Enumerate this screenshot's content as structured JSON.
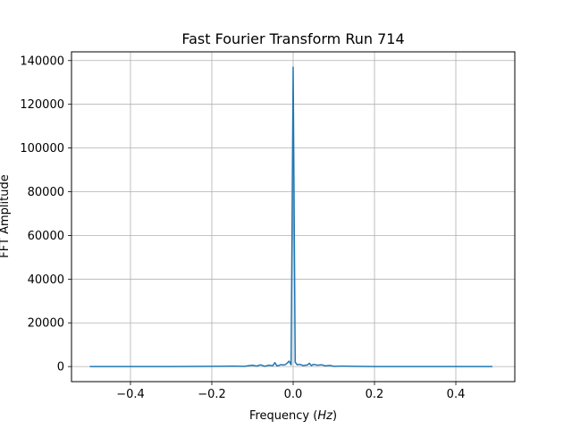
{
  "chart_data": {
    "type": "line",
    "title": "Fast Fourier Transform Run 714",
    "xlabel_prefix": "Frequency (",
    "xlabel_unit": "Hz",
    "xlabel_suffix": ")",
    "ylabel": "FFT Amplitude",
    "xlim": [
      -0.545,
      0.545
    ],
    "ylim": [
      -6900,
      144000
    ],
    "grid": true,
    "x_ticks": [
      -0.4,
      -0.2,
      0.0,
      0.2,
      0.4
    ],
    "x_tick_labels": [
      "−0.4",
      "−0.2",
      "0.0",
      "0.2",
      "0.4"
    ],
    "y_ticks": [
      0,
      20000,
      40000,
      60000,
      80000,
      100000,
      120000,
      140000
    ],
    "y_tick_labels": [
      "0",
      "20000",
      "40000",
      "60000",
      "80000",
      "100000",
      "120000",
      "140000"
    ],
    "series": [
      {
        "color": "#1f77b4",
        "x": [
          -0.5,
          -0.4,
          -0.3,
          -0.2,
          -0.15,
          -0.12,
          -0.1,
          -0.09,
          -0.08,
          -0.07,
          -0.06,
          -0.05,
          -0.045,
          -0.04,
          -0.035,
          -0.03,
          -0.025,
          -0.02,
          -0.015,
          -0.01,
          -0.005,
          0.0,
          0.005,
          0.01,
          0.015,
          0.02,
          0.025,
          0.03,
          0.035,
          0.04,
          0.045,
          0.05,
          0.06,
          0.07,
          0.08,
          0.09,
          0.1,
          0.12,
          0.15,
          0.2,
          0.3,
          0.4,
          0.49
        ],
        "y": [
          0,
          0,
          0,
          100,
          200,
          100,
          600,
          200,
          800,
          100,
          600,
          400,
          1800,
          300,
          500,
          900,
          700,
          800,
          1500,
          2500,
          800,
          137000,
          2000,
          800,
          1000,
          800,
          400,
          600,
          700,
          1500,
          400,
          1000,
          600,
          800,
          300,
          500,
          100,
          200,
          100,
          0,
          0,
          0,
          0
        ]
      }
    ]
  }
}
